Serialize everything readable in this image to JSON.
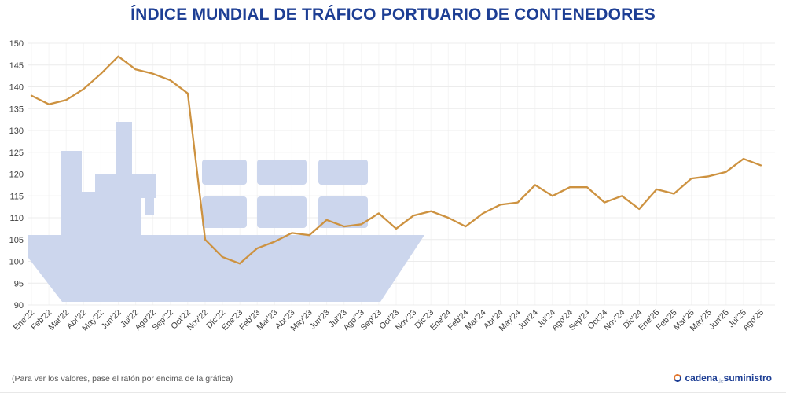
{
  "title": "ÍNDICE MUNDIAL DE TRÁFICO PORTUARIO DE CONTENEDORES",
  "colors": {
    "title": "#1d3e94",
    "line": "#cd9240",
    "watermark": "#ccd6ed",
    "grid_h": "#ececec",
    "grid_v": "#f5f5f5",
    "tick_text": "#3f3f3f",
    "footer_text": "#555555",
    "logo_navy": "#1d3e94",
    "logo_orange": "#e2762d",
    "background": "#ffffff"
  },
  "chart_data": {
    "type": "line",
    "title": "ÍNDICE MUNDIAL DE TRÁFICO PORTUARIO DE CONTENEDORES",
    "categories": [
      "Ene'22",
      "Feb'22",
      "Mar'22",
      "Abr'22",
      "May'22",
      "Jun'22",
      "Jul'22",
      "Ago'22",
      "Sep'22",
      "Oct'22",
      "Nov'22",
      "Dic'22",
      "Ene'23",
      "Feb'23",
      "Mar'23",
      "Abr'23",
      "May'23",
      "Jun'23",
      "Jul'23",
      "Ago'23",
      "Sep'23",
      "Oct'23",
      "Nov'23",
      "Dic'23",
      "Ene'24",
      "Feb'24",
      "Mar'24",
      "Abr'24",
      "May'24",
      "Jun'24",
      "Jul'24",
      "Ago'24",
      "Sep'24",
      "Oct'24",
      "Nov'24",
      "Dic'24",
      "Ene'25",
      "Feb'25",
      "Mar'25",
      "May'25",
      "Jun'25",
      "Jul'25",
      "Ago'25"
    ],
    "values": [
      138,
      136,
      137,
      139.5,
      143,
      147,
      144,
      143,
      141.5,
      138.5,
      105,
      101,
      99.5,
      103,
      104.5,
      106.5,
      106,
      109.5,
      108,
      108.5,
      111,
      107.5,
      110.5,
      111.5,
      110,
      108,
      111,
      113,
      113.5,
      117.5,
      115,
      117,
      117,
      113.5,
      115,
      112,
      116.5,
      115.5,
      119,
      119.5,
      120.5,
      123.5,
      122
    ],
    "ylim": [
      90,
      150
    ],
    "ytick_step": 5,
    "grid": true,
    "legend": "none",
    "line_color": "#cd9240",
    "watermark": "container-ship-silhouette"
  },
  "footer": {
    "hint": "(Para ver los valores, pase el ratón por encima de la gráfica)",
    "logo": {
      "text_primary": "cadena",
      "text_middle": "de",
      "text_secondary": "suministro"
    }
  }
}
